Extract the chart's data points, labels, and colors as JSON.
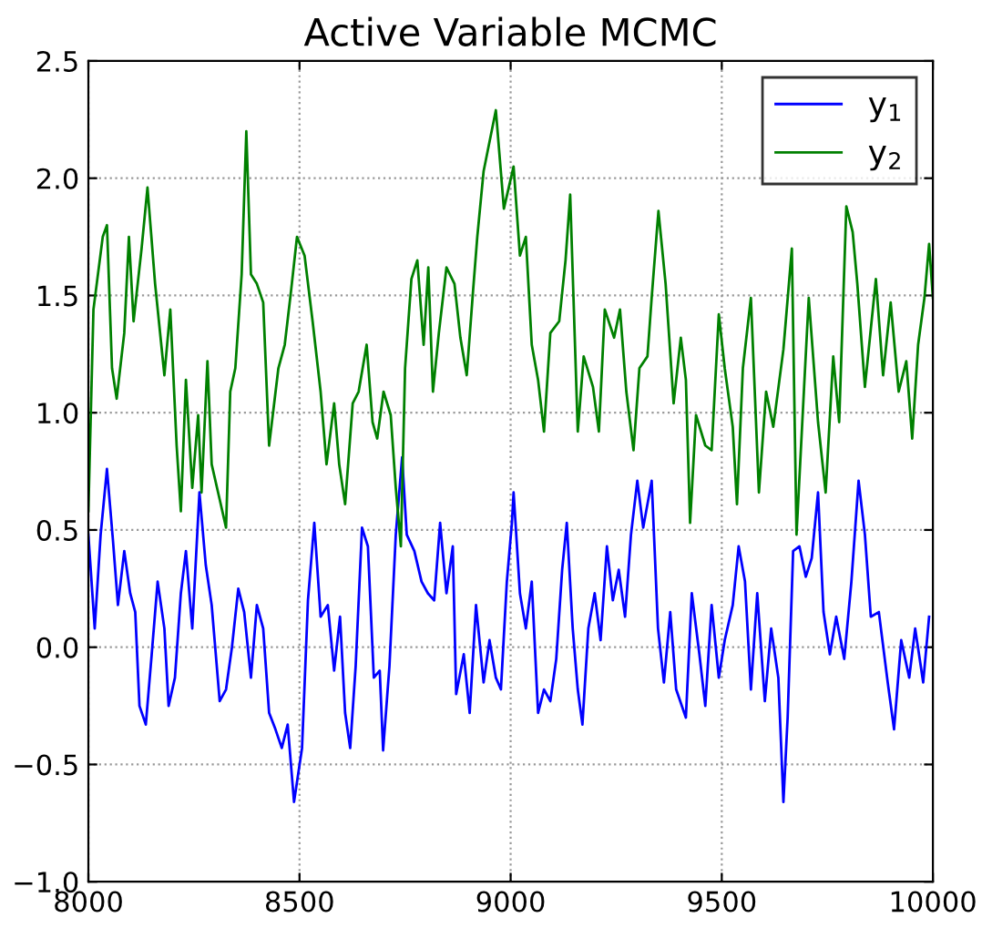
{
  "chart_data": {
    "type": "line",
    "title": "Active Variable MCMC",
    "xlim": [
      8000,
      10000
    ],
    "xticks": [
      8000,
      8500,
      9000,
      9500,
      10000
    ],
    "ylim": [
      -1.0,
      2.5
    ],
    "yticks": [
      {
        "value": -1.0,
        "label": "−1.0"
      },
      {
        "value": -0.5,
        "label": "−0.5"
      },
      {
        "value": 0.0,
        "label": "0.0"
      },
      {
        "value": 0.5,
        "label": "0.5"
      },
      {
        "value": 1.0,
        "label": "1.0"
      },
      {
        "value": 1.5,
        "label": "1.5"
      },
      {
        "value": 2.0,
        "label": "2.0"
      },
      {
        "value": 2.5,
        "label": "2.5"
      }
    ],
    "grid": true,
    "legend": "top right",
    "line_style": "solid",
    "series": [
      {
        "name": "y$_{1}$",
        "color": "#0000ff",
        "x": [
          8000,
          8015,
          8029,
          8044,
          8058,
          8070,
          8085,
          8099,
          8111,
          8121,
          8136,
          8150,
          8164,
          8180,
          8190,
          8205,
          8219,
          8231,
          8246,
          8263,
          8278,
          8292,
          8311,
          8326,
          8340,
          8355,
          8369,
          8385,
          8399,
          8414,
          8428,
          8443,
          8458,
          8472,
          8487,
          8506,
          8520,
          8535,
          8550,
          8567,
          8582,
          8596,
          8608,
          8620,
          8633,
          8648,
          8662,
          8676,
          8690,
          8698,
          8713,
          8728,
          8743,
          8754,
          8772,
          8789,
          8804,
          8819,
          8833,
          8848,
          8863,
          8871,
          8889,
          8903,
          8918,
          8936,
          8950,
          8965,
          8977,
          8991,
          9003,
          9007,
          9022,
          9036,
          9050,
          9065,
          9079,
          9094,
          9108,
          9122,
          9133,
          9147,
          9159,
          9170,
          9184,
          9199,
          9213,
          9228,
          9242,
          9256,
          9271,
          9285,
          9300,
          9314,
          9334,
          9349,
          9363,
          9378,
          9392,
          9415,
          9429,
          9447,
          9461,
          9476,
          9493,
          9507,
          9526,
          9540,
          9555,
          9569,
          9584,
          9602,
          9617,
          9634,
          9646,
          9656,
          9669,
          9684,
          9699,
          9713,
          9728,
          9741,
          9756,
          9771,
          9790,
          9807,
          9824,
          9839,
          9853,
          9872,
          9893,
          9908,
          9925,
          9944,
          9958,
          9977,
          9991
        ],
        "values": [
          0.48,
          0.08,
          0.48,
          0.76,
          0.46,
          0.18,
          0.41,
          0.23,
          0.15,
          -0.25,
          -0.33,
          -0.03,
          0.28,
          0.08,
          -0.25,
          -0.13,
          0.23,
          0.41,
          0.08,
          0.66,
          0.35,
          0.18,
          -0.23,
          -0.18,
          0.0,
          0.25,
          0.15,
          -0.13,
          0.18,
          0.08,
          -0.28,
          -0.35,
          -0.43,
          -0.33,
          -0.66,
          -0.43,
          0.2,
          0.53,
          0.13,
          0.18,
          -0.1,
          0.13,
          -0.28,
          -0.43,
          -0.08,
          0.51,
          0.43,
          -0.13,
          -0.1,
          -0.44,
          -0.08,
          0.48,
          0.81,
          0.48,
          0.41,
          0.28,
          0.23,
          0.2,
          0.53,
          0.23,
          0.43,
          -0.2,
          -0.03,
          -0.28,
          0.18,
          -0.15,
          0.03,
          -0.13,
          -0.18,
          0.28,
          0.53,
          0.66,
          0.23,
          0.08,
          0.28,
          -0.28,
          -0.18,
          -0.23,
          -0.05,
          0.33,
          0.53,
          0.08,
          -0.18,
          -0.33,
          0.08,
          0.23,
          0.03,
          0.43,
          0.2,
          0.33,
          0.13,
          0.48,
          0.71,
          0.51,
          0.71,
          0.08,
          -0.15,
          0.15,
          -0.18,
          -0.3,
          0.23,
          -0.03,
          -0.25,
          0.18,
          -0.13,
          0.03,
          0.18,
          0.43,
          0.28,
          -0.18,
          0.23,
          -0.23,
          0.08,
          -0.13,
          -0.66,
          -0.3,
          0.41,
          0.43,
          0.3,
          0.38,
          0.66,
          0.15,
          -0.03,
          0.13,
          -0.05,
          0.28,
          0.71,
          0.48,
          0.13,
          0.15,
          -0.15,
          -0.35,
          0.03,
          -0.13,
          0.08,
          -0.15,
          0.13
        ]
      },
      {
        "name": "y$_{2}$",
        "color": "#008000",
        "x": [
          8000,
          8012,
          8034,
          8044,
          8056,
          8067,
          8085,
          8096,
          8107,
          8126,
          8140,
          8158,
          8180,
          8194,
          8209,
          8219,
          8231,
          8246,
          8260,
          8268,
          8282,
          8292,
          8311,
          8326,
          8336,
          8348,
          8363,
          8374,
          8385,
          8399,
          8414,
          8428,
          8450,
          8465,
          8480,
          8494,
          8512,
          8531,
          8550,
          8564,
          8582,
          8594,
          8608,
          8626,
          8640,
          8659,
          8673,
          8684,
          8699,
          8716,
          8728,
          8740,
          8750,
          8765,
          8779,
          8794,
          8805,
          8816,
          8830,
          8848,
          8867,
          8881,
          8896,
          8911,
          8921,
          8936,
          8965,
          8984,
          9007,
          9022,
          9036,
          9050,
          9065,
          9079,
          9094,
          9115,
          9130,
          9141,
          9159,
          9173,
          9195,
          9209,
          9223,
          9245,
          9259,
          9274,
          9291,
          9305,
          9324,
          9334,
          9350,
          9367,
          9386,
          9403,
          9415,
          9425,
          9439,
          9461,
          9476,
          9493,
          9507,
          9526,
          9536,
          9550,
          9569,
          9588,
          9605,
          9622,
          9646,
          9666,
          9677,
          9695,
          9706,
          9728,
          9746,
          9764,
          9778,
          9795,
          9810,
          9821,
          9839,
          9865,
          9882,
          9900,
          9919,
          9937,
          9951,
          9965,
          9980,
          9991,
          10000
        ],
        "values": [
          0.58,
          1.44,
          1.75,
          1.8,
          1.19,
          1.06,
          1.34,
          1.75,
          1.39,
          1.7,
          1.96,
          1.55,
          1.16,
          1.44,
          0.86,
          0.58,
          1.14,
          0.68,
          0.99,
          0.66,
          1.22,
          0.78,
          0.63,
          0.51,
          1.09,
          1.19,
          1.59,
          2.2,
          1.59,
          1.55,
          1.47,
          0.86,
          1.19,
          1.29,
          1.52,
          1.75,
          1.67,
          1.39,
          1.09,
          0.78,
          1.04,
          0.78,
          0.61,
          1.04,
          1.09,
          1.29,
          0.96,
          0.89,
          1.09,
          0.99,
          0.68,
          0.43,
          1.19,
          1.57,
          1.65,
          1.29,
          1.62,
          1.09,
          1.34,
          1.62,
          1.55,
          1.32,
          1.16,
          1.52,
          1.75,
          2.03,
          2.29,
          1.87,
          2.05,
          1.67,
          1.75,
          1.29,
          1.14,
          0.92,
          1.34,
          1.39,
          1.65,
          1.93,
          0.92,
          1.24,
          1.11,
          0.92,
          1.44,
          1.32,
          1.44,
          1.09,
          0.84,
          1.19,
          1.24,
          1.49,
          1.86,
          1.55,
          1.04,
          1.32,
          1.14,
          0.53,
          0.99,
          0.86,
          0.84,
          1.42,
          1.19,
          0.94,
          0.61,
          1.19,
          1.49,
          0.66,
          1.09,
          0.94,
          1.27,
          1.7,
          0.48,
          1.11,
          1.49,
          0.96,
          0.66,
          1.24,
          0.96,
          1.88,
          1.77,
          1.55,
          1.11,
          1.57,
          1.16,
          1.47,
          1.09,
          1.22,
          0.89,
          1.29,
          1.49,
          1.72,
          1.49
        ]
      }
    ]
  }
}
